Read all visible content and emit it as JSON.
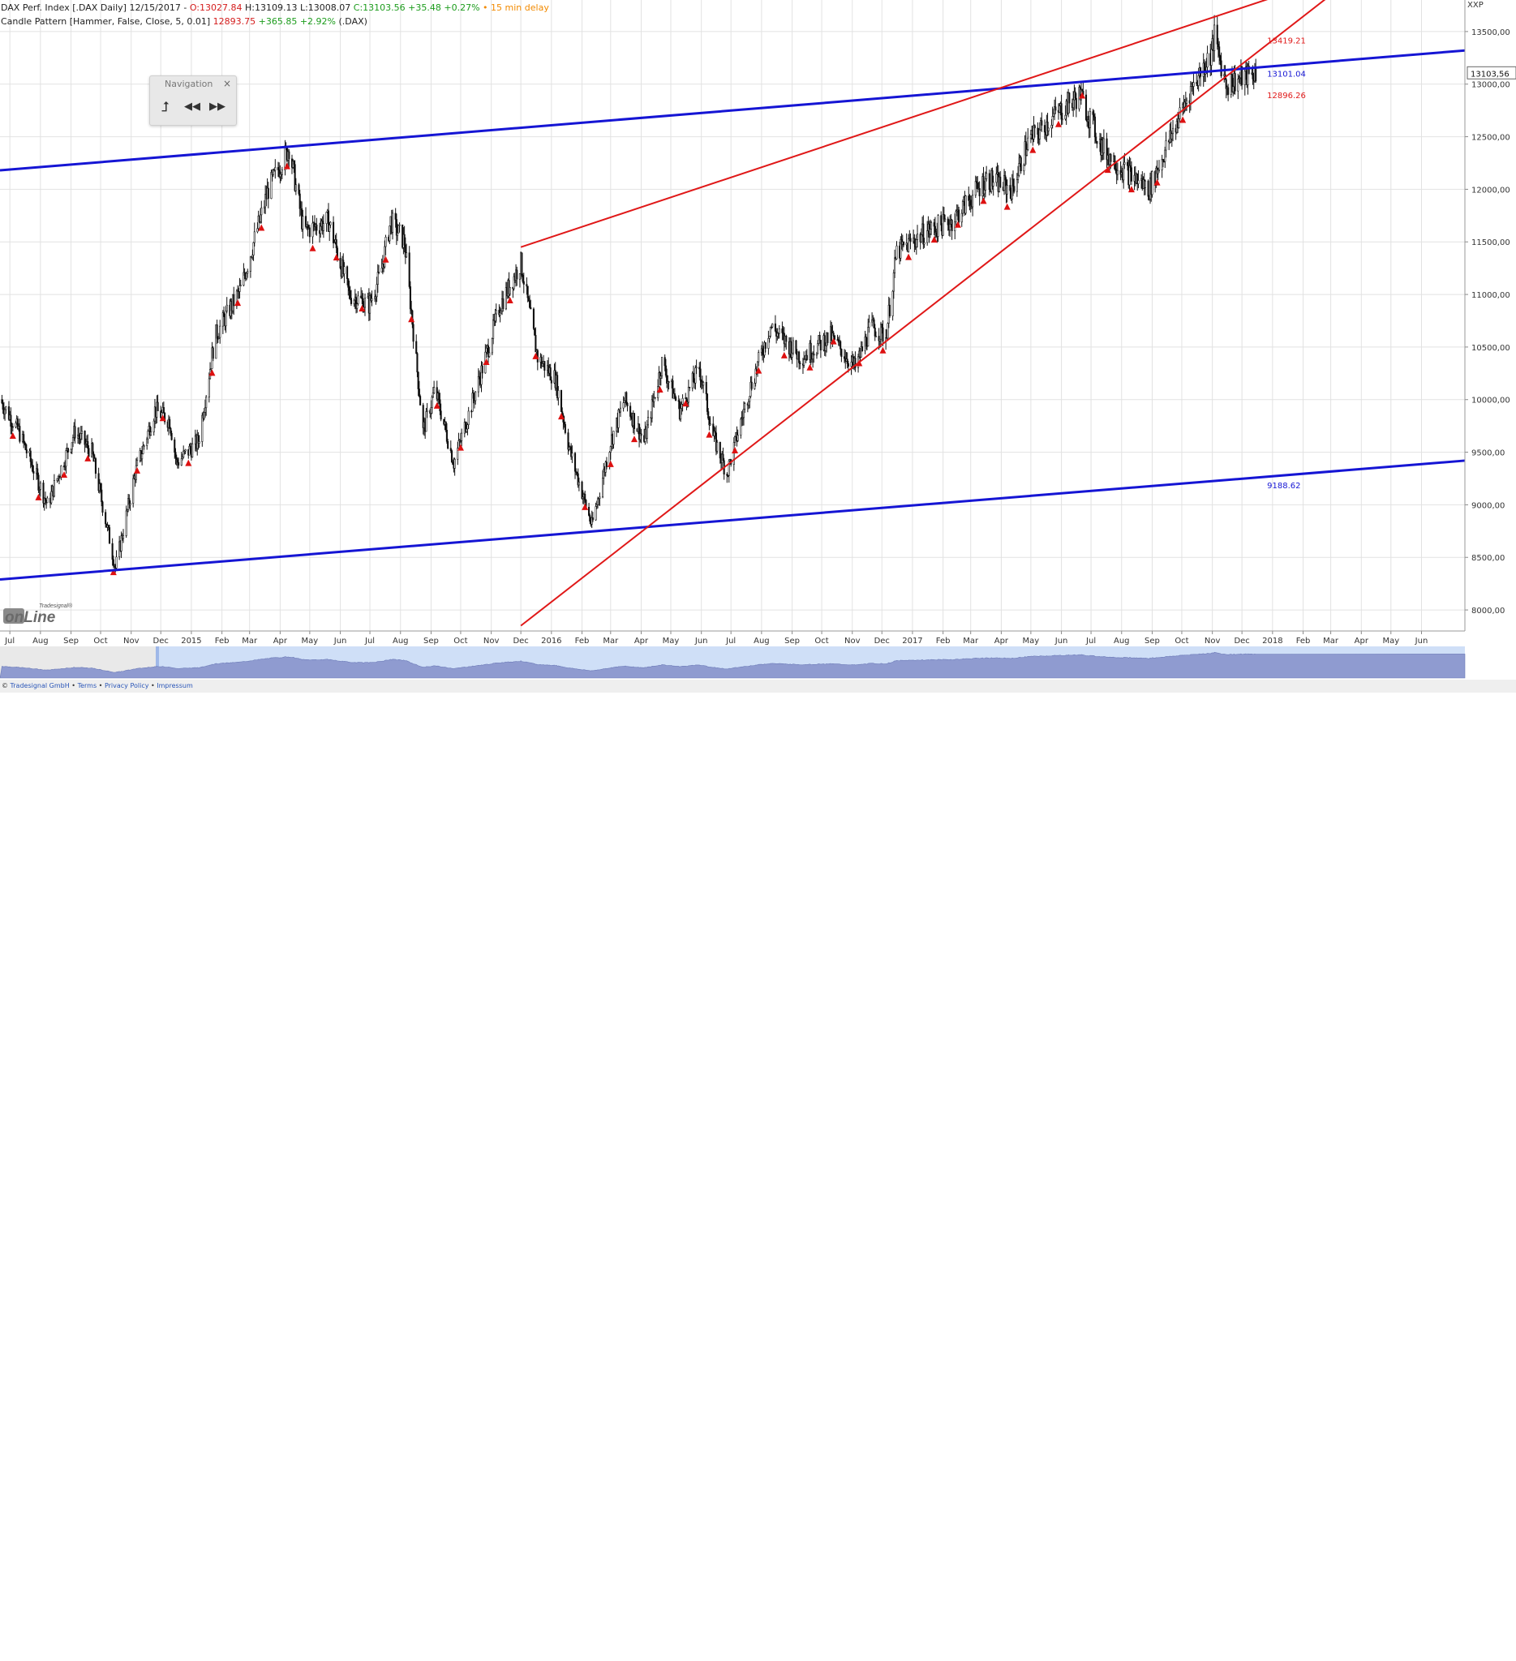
{
  "header": {
    "instrument": "DAX Perf. Index [.DAX Daily] 12/15/2017",
    "open": "O:13027.84",
    "high": "H:13109.13",
    "low": "L:13008.07",
    "close": "C:13103.56",
    "change": "+35.48 +0.27%",
    "delay_bullet": "•",
    "delay": "15 min delay",
    "indicator_label": "Candle Pattern [Hammer, False, Close, 5, 0.01]",
    "indicator_value": "12893.75",
    "indicator_change": "+365.85 +2.92%",
    "indicator_symbol": "(.DAX)"
  },
  "navigation": {
    "title": "Navigation",
    "close_symbol": "×",
    "up_symbol": "⮥",
    "back_symbol": "◀◀",
    "forward_symbol": "▶▶"
  },
  "axis": {
    "symbol": "XXP",
    "current_price_label": "13103,56"
  },
  "footer": {
    "copyright": "© ",
    "company": "Tradesignal GmbH",
    "sep": " • ",
    "terms": "Terms",
    "privacy": "Privacy Policy",
    "impressum": "Impressum"
  },
  "badge": {
    "small": "Tradesignal®",
    "big": "onLine"
  },
  "colors": {
    "trend_blue": "#1515d4",
    "trend_red": "#e01818",
    "candle": "#111111",
    "hammer_marker": "#dd1010",
    "grid": "#e2e2e2",
    "overview_fill": "#8f9bd0",
    "overview_bg": "#cfdff7"
  },
  "chart_data": {
    "type": "candlestick",
    "y_range": [
      7800,
      13800
    ],
    "y_ticks": [
      8000,
      8500,
      9000,
      9500,
      10000,
      10500,
      11000,
      11500,
      12000,
      12500,
      13000,
      13500
    ],
    "y_tick_labels": [
      "8000,00",
      "8500,00",
      "9000,00",
      "9500,00",
      "10000,00",
      "10500,00",
      "11000,00",
      "11500,00",
      "12000,00",
      "12500,00",
      "13000,00",
      "13500,00"
    ],
    "x_range": [
      "2014-06-21",
      "2018-07-15"
    ],
    "x_ticks": [
      {
        "date": "2014-07-01",
        "label": "Jul"
      },
      {
        "date": "2014-08-01",
        "label": "Aug"
      },
      {
        "date": "2014-09-01",
        "label": "Sep"
      },
      {
        "date": "2014-10-01",
        "label": "Oct"
      },
      {
        "date": "2014-11-01",
        "label": "Nov"
      },
      {
        "date": "2014-12-01",
        "label": "Dec"
      },
      {
        "date": "2015-01-01",
        "label": "2015"
      },
      {
        "date": "2015-02-01",
        "label": "Feb"
      },
      {
        "date": "2015-03-01",
        "label": "Mar"
      },
      {
        "date": "2015-04-01",
        "label": "Apr"
      },
      {
        "date": "2015-05-01",
        "label": "May"
      },
      {
        "date": "2015-06-01",
        "label": "Jun"
      },
      {
        "date": "2015-07-01",
        "label": "Jul"
      },
      {
        "date": "2015-08-01",
        "label": "Aug"
      },
      {
        "date": "2015-09-01",
        "label": "Sep"
      },
      {
        "date": "2015-10-01",
        "label": "Oct"
      },
      {
        "date": "2015-11-01",
        "label": "Nov"
      },
      {
        "date": "2015-12-01",
        "label": "Dec"
      },
      {
        "date": "2016-01-01",
        "label": "2016"
      },
      {
        "date": "2016-02-01",
        "label": "Feb"
      },
      {
        "date": "2016-03-01",
        "label": "Mar"
      },
      {
        "date": "2016-04-01",
        "label": "Apr"
      },
      {
        "date": "2016-05-01",
        "label": "May"
      },
      {
        "date": "2016-06-01",
        "label": "Jun"
      },
      {
        "date": "2016-07-01",
        "label": "Jul"
      },
      {
        "date": "2016-08-01",
        "label": "Aug"
      },
      {
        "date": "2016-09-01",
        "label": "Sep"
      },
      {
        "date": "2016-10-01",
        "label": "Oct"
      },
      {
        "date": "2016-11-01",
        "label": "Nov"
      },
      {
        "date": "2016-12-01",
        "label": "Dec"
      },
      {
        "date": "2017-01-01",
        "label": "2017"
      },
      {
        "date": "2017-02-01",
        "label": "Feb"
      },
      {
        "date": "2017-03-01",
        "label": "Mar"
      },
      {
        "date": "2017-04-01",
        "label": "Apr"
      },
      {
        "date": "2017-05-01",
        "label": "May"
      },
      {
        "date": "2017-06-01",
        "label": "Jun"
      },
      {
        "date": "2017-07-01",
        "label": "Jul"
      },
      {
        "date": "2017-08-01",
        "label": "Aug"
      },
      {
        "date": "2017-09-01",
        "label": "Sep"
      },
      {
        "date": "2017-10-01",
        "label": "Oct"
      },
      {
        "date": "2017-11-01",
        "label": "Nov"
      },
      {
        "date": "2017-12-01",
        "label": "Dec"
      },
      {
        "date": "2018-01-01",
        "label": "2018"
      },
      {
        "date": "2018-02-01",
        "label": "Feb"
      },
      {
        "date": "2018-03-01",
        "label": "Mar"
      },
      {
        "date": "2018-04-01",
        "label": "Apr"
      },
      {
        "date": "2018-05-01",
        "label": "May"
      },
      {
        "date": "2018-06-01",
        "label": "Jun"
      }
    ],
    "price_path": [
      [
        "2014-06-21",
        10000
      ],
      [
        "2014-07-10",
        9700
      ],
      [
        "2014-08-08",
        9000
      ],
      [
        "2014-08-20",
        9300
      ],
      [
        "2014-09-05",
        9700
      ],
      [
        "2014-09-22",
        9500
      ],
      [
        "2014-10-16",
        8400
      ],
      [
        "2014-11-05",
        9300
      ],
      [
        "2014-11-25",
        9900
      ],
      [
        "2014-12-10",
        9800
      ],
      [
        "2014-12-17",
        9400
      ],
      [
        "2015-01-08",
        9600
      ],
      [
        "2015-01-25",
        10600
      ],
      [
        "2015-02-20",
        11050
      ],
      [
        "2015-03-20",
        12000
      ],
      [
        "2015-04-10",
        12400
      ],
      [
        "2015-04-25",
        11600
      ],
      [
        "2015-05-20",
        11700
      ],
      [
        "2015-06-10",
        11000
      ],
      [
        "2015-06-30",
        10900
      ],
      [
        "2015-07-12",
        11200
      ],
      [
        "2015-07-22",
        11700
      ],
      [
        "2015-08-05",
        11500
      ],
      [
        "2015-08-24",
        9700
      ],
      [
        "2015-09-05",
        10100
      ],
      [
        "2015-09-24",
        9400
      ],
      [
        "2015-10-20",
        10200
      ],
      [
        "2015-11-10",
        10900
      ],
      [
        "2015-12-01",
        11300
      ],
      [
        "2015-12-18",
        10400
      ],
      [
        "2016-01-05",
        10200
      ],
      [
        "2016-01-20",
        9500
      ],
      [
        "2016-02-11",
        8800
      ],
      [
        "2016-03-01",
        9600
      ],
      [
        "2016-03-15",
        10000
      ],
      [
        "2016-04-04",
        9600
      ],
      [
        "2016-04-22",
        10350
      ],
      [
        "2016-05-10",
        9900
      ],
      [
        "2016-05-30",
        10300
      ],
      [
        "2016-06-13",
        9650
      ],
      [
        "2016-06-27",
        9300
      ],
      [
        "2016-07-20",
        10100
      ],
      [
        "2016-08-10",
        10700
      ],
      [
        "2016-09-10",
        10400
      ],
      [
        "2016-10-10",
        10600
      ],
      [
        "2016-11-04",
        10300
      ],
      [
        "2016-11-20",
        10700
      ],
      [
        "2016-12-05",
        10600
      ],
      [
        "2016-12-16",
        11400
      ],
      [
        "2017-01-15",
        11600
      ],
      [
        "2017-02-10",
        11700
      ],
      [
        "2017-03-17",
        12100
      ],
      [
        "2017-04-12",
        12000
      ],
      [
        "2017-04-28",
        12450
      ],
      [
        "2017-05-25",
        12700
      ],
      [
        "2017-06-20",
        12900
      ],
      [
        "2017-07-12",
        12400
      ],
      [
        "2017-08-01",
        12200
      ],
      [
        "2017-08-29",
        12000
      ],
      [
        "2017-09-20",
        12500
      ],
      [
        "2017-10-10",
        12950
      ],
      [
        "2017-10-31",
        13300
      ],
      [
        "2017-11-03",
        13450
      ],
      [
        "2017-11-15",
        13000
      ],
      [
        "2017-11-29",
        13050
      ],
      [
        "2017-12-15",
        13103.56
      ]
    ],
    "trendlines": [
      {
        "color": "blue",
        "from": [
          "2014-06-21",
          12180
        ],
        "to": [
          "2018-07-15",
          13320
        ]
      },
      {
        "color": "blue",
        "from": [
          "2014-06-21",
          8290
        ],
        "to": [
          "2018-07-15",
          9420
        ]
      },
      {
        "color": "red",
        "from": [
          "2015-12-01",
          11450
        ],
        "to": [
          "2018-03-15",
          14050
        ]
      },
      {
        "color": "red",
        "from": [
          "2015-12-01",
          7850
        ],
        "to": [
          "2018-03-15",
          13950
        ]
      }
    ],
    "labels": [
      {
        "text": "13419.21",
        "date": "2017-12-15",
        "value": 13419.21,
        "color": "red"
      },
      {
        "text": "13101.04",
        "date": "2017-12-15",
        "value": 13101.04,
        "color": "blue"
      },
      {
        "text": "12896.26",
        "date": "2017-12-15",
        "value": 12896.26,
        "color": "red"
      },
      {
        "text": "9188.62",
        "date": "2017-12-15",
        "value": 9188.62,
        "color": "blue"
      }
    ],
    "hammer_markers_count": 48
  }
}
